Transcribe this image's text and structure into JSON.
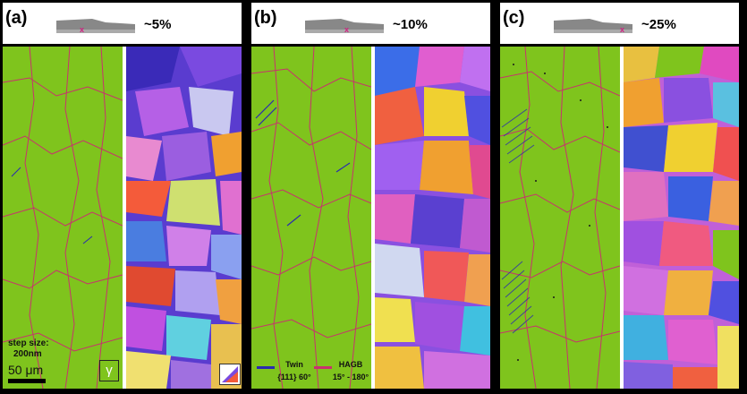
{
  "panels": [
    {
      "label": "(a)",
      "strain": "~5%",
      "marker": "x"
    },
    {
      "label": "(b)",
      "strain": "~10%",
      "marker": "x"
    },
    {
      "label": "(c)",
      "strain": "~25%",
      "marker": "x"
    }
  ],
  "annotations": {
    "step_size_label": "step size:",
    "step_size_value": "200nm",
    "scale_bar": "50 μm",
    "phase_symbol": "γ"
  },
  "legend": {
    "twin_title": "Twin",
    "twin_desc": "{111} 60°",
    "twin_color": "#2a2ab0",
    "hagb_title": "HAGB",
    "hagb_desc": "15° - 180°",
    "hagb_color": "#c8326e"
  },
  "colors": {
    "phase_green": "#7fc41d",
    "grain_boundary": "#c8326e",
    "twin": "#2a2ab0",
    "specimen_marker": "#d02080"
  }
}
